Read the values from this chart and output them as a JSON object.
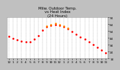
{
  "title": "Milw. Outdoor Temp.\nvs Heat Index\n(24 Hours)",
  "background_color": "#c0c0c0",
  "plot_bg_color": "#ffffff",
  "temp_color": "#ff0000",
  "heat_color": "#ff8800",
  "ylim": [
    14,
    74
  ],
  "ytick_vals": [
    14,
    24,
    34,
    44,
    54,
    64,
    74
  ],
  "ytick_labels": [
    "14",
    "24",
    "34",
    "44",
    "54",
    "64",
    "74"
  ],
  "hours": [
    0,
    1,
    2,
    3,
    4,
    5,
    6,
    7,
    8,
    9,
    10,
    11,
    12,
    13,
    14,
    15,
    16,
    17,
    18,
    19,
    20,
    21,
    22,
    23
  ],
  "temp": [
    46,
    43,
    41,
    39,
    38,
    38,
    42,
    47,
    55,
    60,
    62,
    63,
    62,
    60,
    57,
    53,
    49,
    45,
    42,
    38,
    34,
    30,
    26,
    22
  ],
  "heat": [
    null,
    null,
    null,
    null,
    null,
    null,
    null,
    null,
    null,
    61,
    63,
    65,
    63,
    61,
    58,
    null,
    null,
    null,
    null,
    null,
    null,
    null,
    null,
    null
  ],
  "grid_positions": [
    0,
    1,
    2,
    3,
    4,
    5,
    6,
    7,
    8,
    9,
    10,
    11,
    12,
    13,
    14,
    15,
    16,
    17,
    18,
    19,
    20,
    21,
    22,
    23
  ],
  "xtick_positions": [
    0,
    1,
    2,
    3,
    4,
    5,
    6,
    7,
    8,
    9,
    10,
    11,
    12,
    13,
    14,
    15,
    16,
    17,
    18,
    19,
    20,
    21,
    22,
    23
  ],
  "xtick_labels": [
    "12",
    "1",
    "2",
    "3",
    "4",
    "5",
    "6",
    "7",
    "8",
    "9",
    "10",
    "11",
    "12",
    "1",
    "2",
    "3",
    "4",
    "5",
    "6",
    "7",
    "8",
    "9",
    "10",
    "11"
  ],
  "title_fontsize": 4.0,
  "tick_fontsize": 3.2,
  "marker_size": 1.0,
  "grid_color": "#888888",
  "grid_alpha": 0.8,
  "spine_color": "#888888"
}
